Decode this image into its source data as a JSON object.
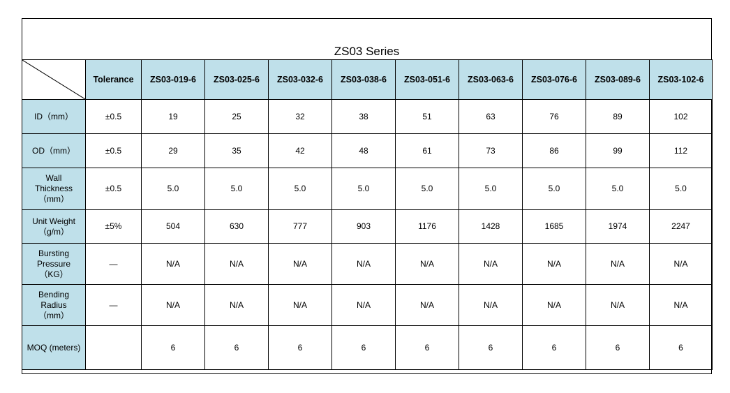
{
  "title": "ZS03 Series",
  "header": {
    "tolerance": "Tolerance",
    "models": [
      "ZS03-019-6",
      "ZS03-025-6",
      "ZS03-032-6",
      "ZS03-038-6",
      "ZS03-051-6",
      "ZS03-063-6",
      "ZS03-076-6",
      "ZS03-089-6",
      "ZS03-102-6"
    ]
  },
  "rows": [
    {
      "label": "ID（mm）",
      "tolerance": "±0.5",
      "values": [
        "19",
        "25",
        "32",
        "38",
        "51",
        "63",
        "76",
        "89",
        "102"
      ]
    },
    {
      "label": "OD（mm）",
      "tolerance": "±0.5",
      "values": [
        "29",
        "35",
        "42",
        "48",
        "61",
        "73",
        "86",
        "99",
        "112"
      ]
    },
    {
      "label": "Wall\nThickness\n（mm）",
      "tolerance": "±0.5",
      "values": [
        "5.0",
        "5.0",
        "5.0",
        "5.0",
        "5.0",
        "5.0",
        "5.0",
        "5.0",
        "5.0"
      ]
    },
    {
      "label": "Unit Weight\n（g/m）",
      "tolerance": "±5%",
      "values": [
        "504",
        "630",
        "777",
        "903",
        "1176",
        "1428",
        "1685",
        "1974",
        "2247"
      ]
    },
    {
      "label": "Bursting\nPressure\n（KG）",
      "tolerance": "—",
      "values": [
        "N/A",
        "N/A",
        "N/A",
        "N/A",
        "N/A",
        "N/A",
        "N/A",
        "N/A",
        "N/A"
      ]
    },
    {
      "label": "Bending\nRadius\n（mm）",
      "tolerance": "—",
      "values": [
        "N/A",
        "N/A",
        "N/A",
        "N/A",
        "N/A",
        "N/A",
        "N/A",
        "N/A",
        "N/A"
      ]
    },
    {
      "label": "MOQ (meters)",
      "tolerance": "",
      "values": [
        "6",
        "6",
        "6",
        "6",
        "6",
        "6",
        "6",
        "6",
        "6"
      ]
    }
  ]
}
